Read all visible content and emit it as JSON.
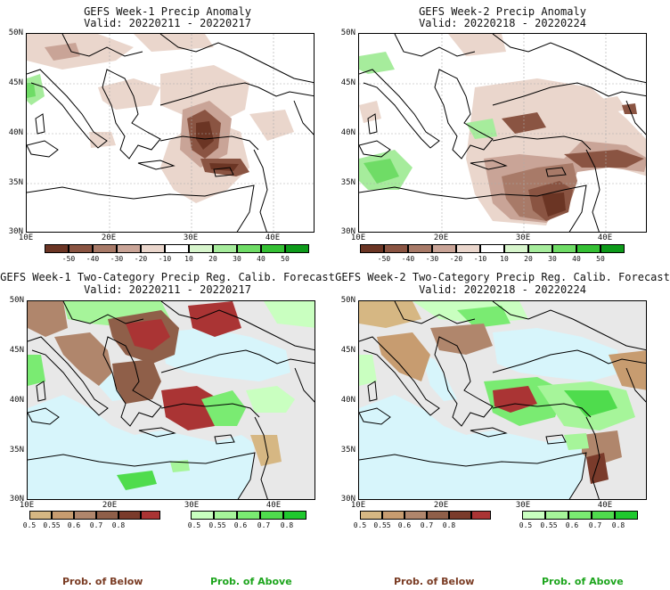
{
  "colors": {
    "land": "#ffffff",
    "sea_calibrated": "#d7f5fb",
    "nodata": "#e8e8e8",
    "coast": "#000000",
    "anomaly_scale": [
      "#6b3524",
      "#8a5442",
      "#a87a68",
      "#c9a497",
      "#ead6cc",
      "#ffffff",
      "#d7f5cc",
      "#a6ec9c",
      "#6fdc66",
      "#35c034",
      "#0d9a1a"
    ],
    "below_scale": [
      "#d6b783",
      "#c79c70",
      "#b0866c",
      "#8f5f49",
      "#7a3b2b",
      "#aa3434"
    ],
    "above_scale": [
      "#c9ffc0",
      "#a6f59a",
      "#7aeb72",
      "#4fdc4d",
      "#1fc92e"
    ],
    "prob_below_title": "#7a3c24",
    "prob_above_title": "#1da51d"
  },
  "panels": [
    {
      "title": "GEFS Week-1 Precip Anomaly",
      "valid": "Valid: 20220211 - 20220217",
      "type": "anomaly"
    },
    {
      "title": "GEFS Week-2 Precip Anomaly",
      "valid": "Valid: 20220218 - 20220224",
      "type": "anomaly"
    },
    {
      "title": "GEFS Week-1 Two-Category Precip Reg. Calib. Forecast",
      "valid": "Valid: 20220211 - 20220217",
      "type": "probability"
    },
    {
      "title": "GEFS Week-2 Two-Category Precip Reg. Calib. Forecast",
      "valid": "Valid: 20220218 - 20220224",
      "type": "probability"
    }
  ],
  "axes": {
    "lat_labels": [
      "50N",
      "45N",
      "40N",
      "35N",
      "30N"
    ],
    "lon_labels": [
      "10E",
      "20E",
      "30E",
      "40E"
    ]
  },
  "anomaly_colorbar": {
    "ticks": [
      "-50",
      "-40",
      "-30",
      "-20",
      "-10",
      "10",
      "20",
      "30",
      "40",
      "50"
    ]
  },
  "prob_colorbar": {
    "below_ticks": [
      "0.5",
      "0.55",
      "0.6",
      "0.7",
      "0.8"
    ],
    "above_ticks": [
      "0.5",
      "0.55",
      "0.6",
      "0.7",
      "0.8"
    ],
    "below_title": "Prob. of Below",
    "above_title": "Prob. of Above"
  }
}
